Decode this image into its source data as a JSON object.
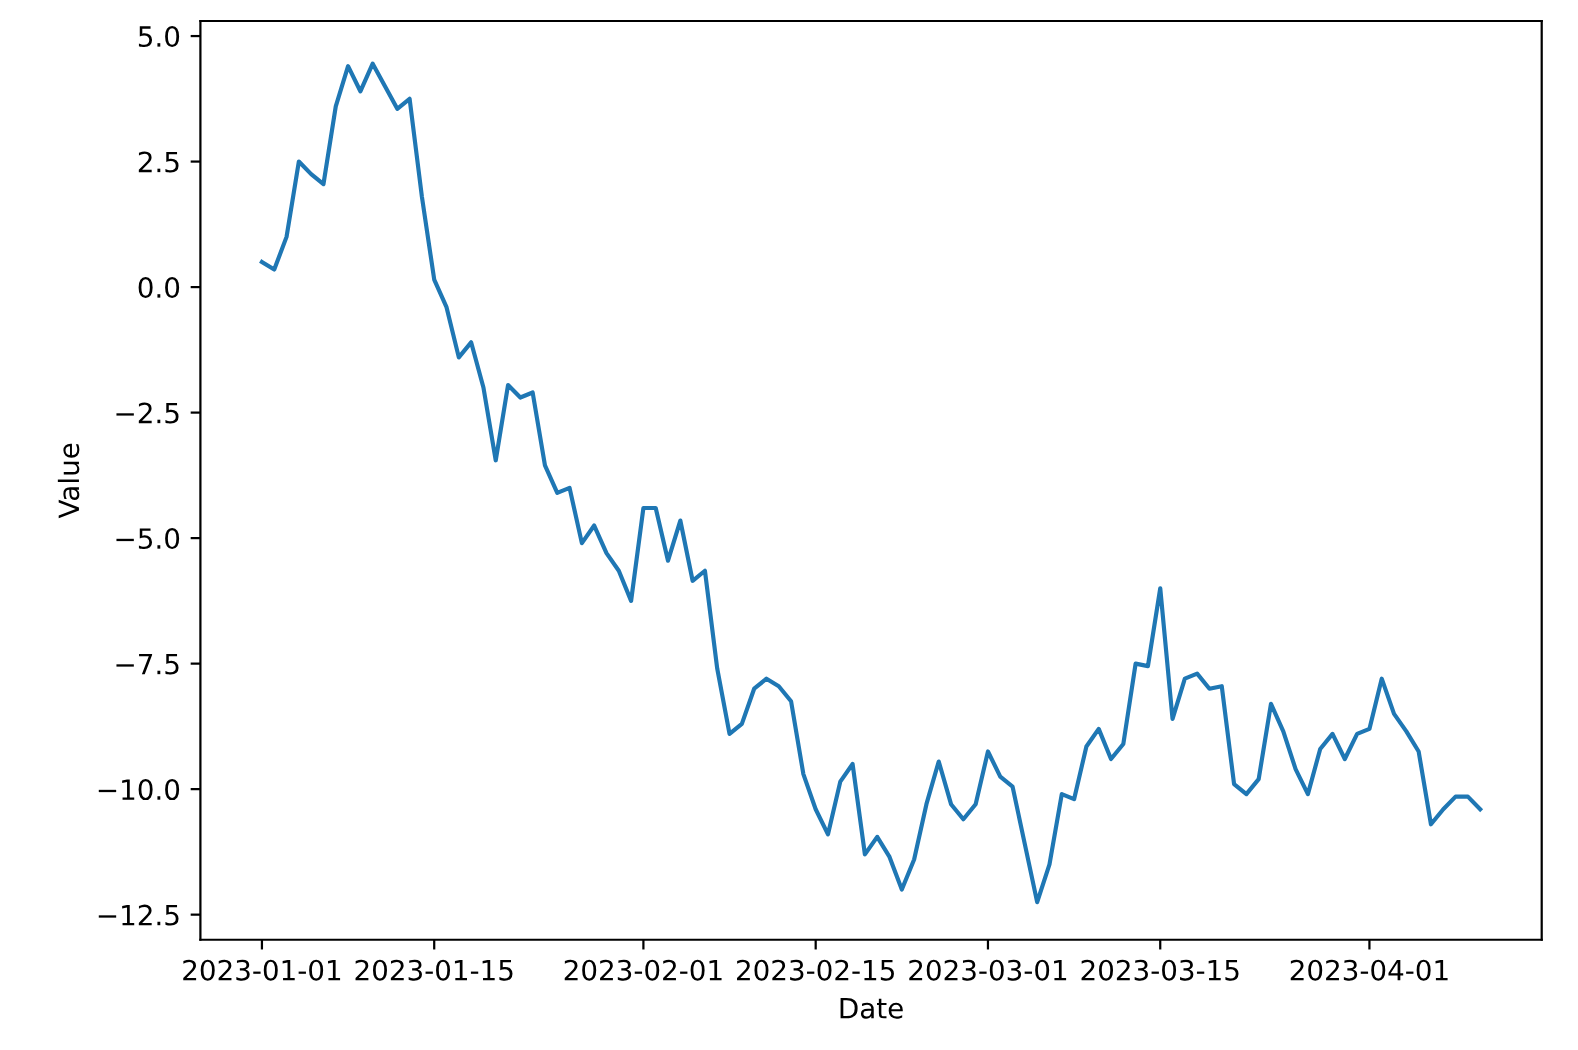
{
  "chart_data": {
    "type": "line",
    "xlabel": "Date",
    "ylabel": "Value",
    "x": [
      "2023-01-01",
      "2023-01-02",
      "2023-01-03",
      "2023-01-04",
      "2023-01-05",
      "2023-01-06",
      "2023-01-07",
      "2023-01-08",
      "2023-01-09",
      "2023-01-10",
      "2023-01-11",
      "2023-01-12",
      "2023-01-13",
      "2023-01-14",
      "2023-01-15",
      "2023-01-16",
      "2023-01-17",
      "2023-01-18",
      "2023-01-19",
      "2023-01-20",
      "2023-01-21",
      "2023-01-22",
      "2023-01-23",
      "2023-01-24",
      "2023-01-25",
      "2023-01-26",
      "2023-01-27",
      "2023-01-28",
      "2023-01-29",
      "2023-01-30",
      "2023-01-31",
      "2023-02-01",
      "2023-02-02",
      "2023-02-03",
      "2023-02-04",
      "2023-02-05",
      "2023-02-06",
      "2023-02-07",
      "2023-02-08",
      "2023-02-09",
      "2023-02-10",
      "2023-02-11",
      "2023-02-12",
      "2023-02-13",
      "2023-02-14",
      "2023-02-15",
      "2023-02-16",
      "2023-02-17",
      "2023-02-18",
      "2023-02-19",
      "2023-02-20",
      "2023-02-21",
      "2023-02-22",
      "2023-02-23",
      "2023-02-24",
      "2023-02-25",
      "2023-02-26",
      "2023-02-27",
      "2023-02-28",
      "2023-03-01",
      "2023-03-02",
      "2023-03-03",
      "2023-03-04",
      "2023-03-05",
      "2023-03-06",
      "2023-03-07",
      "2023-03-08",
      "2023-03-09",
      "2023-03-10",
      "2023-03-11",
      "2023-03-12",
      "2023-03-13",
      "2023-03-14",
      "2023-03-15",
      "2023-03-16",
      "2023-03-17",
      "2023-03-18",
      "2023-03-19",
      "2023-03-20",
      "2023-03-21",
      "2023-03-22",
      "2023-03-23",
      "2023-03-24",
      "2023-03-25",
      "2023-03-26",
      "2023-03-27",
      "2023-03-28",
      "2023-03-29",
      "2023-03-30",
      "2023-03-31",
      "2023-04-01",
      "2023-04-02",
      "2023-04-03",
      "2023-04-04",
      "2023-04-05",
      "2023-04-06",
      "2023-04-07",
      "2023-04-08",
      "2023-04-09",
      "2023-04-10"
    ],
    "series": [
      {
        "color": "#1f77b4",
        "values": [
          0.5,
          0.35,
          1.0,
          2.5,
          2.25,
          2.05,
          3.6,
          4.4,
          3.9,
          4.45,
          4.0,
          3.55,
          3.75,
          1.8,
          0.15,
          -0.4,
          -1.4,
          -1.1,
          -2.0,
          -3.45,
          -1.95,
          -2.2,
          -2.1,
          -3.55,
          -4.1,
          -4.0,
          -5.1,
          -4.75,
          -5.3,
          -5.65,
          -6.25,
          -4.4,
          -4.4,
          -5.45,
          -4.65,
          -5.85,
          -5.65,
          -7.6,
          -8.9,
          -8.7,
          -8.0,
          -7.8,
          -7.95,
          -8.25,
          -9.7,
          -10.4,
          -10.9,
          -9.85,
          -9.5,
          -11.3,
          -10.95,
          -11.35,
          -12.0,
          -11.4,
          -10.3,
          -9.45,
          -10.3,
          -10.6,
          -10.3,
          -9.25,
          -9.75,
          -9.95,
          -11.1,
          -12.25,
          -11.5,
          -10.1,
          -10.2,
          -9.15,
          -8.8,
          -9.4,
          -9.1,
          -7.5,
          -7.55,
          -6.0,
          -8.6,
          -7.8,
          -7.7,
          -8.0,
          -7.95,
          -9.9,
          -10.1,
          -9.8,
          -8.3,
          -8.85,
          -9.6,
          -10.1,
          -9.2,
          -8.9,
          -9.4,
          -8.9,
          -8.8,
          -7.8,
          -8.5,
          -8.85,
          -9.25,
          -10.7,
          -10.4,
          -10.15,
          -10.15,
          -10.4
        ]
      }
    ],
    "xlim": [
      "2022-12-27",
      "2023-04-15"
    ],
    "xticks": [
      "2023-01-01",
      "2023-01-15",
      "2023-02-01",
      "2023-02-15",
      "2023-03-01",
      "2023-03-15",
      "2023-04-01"
    ],
    "ylim": [
      -13.0,
      5.3
    ],
    "yticks": [
      {
        "value": -12.5,
        "label": "−12.5"
      },
      {
        "value": -10.0,
        "label": "−10.0"
      },
      {
        "value": -7.5,
        "label": "−7.5"
      },
      {
        "value": -5.0,
        "label": "−5.0"
      },
      {
        "value": -2.5,
        "label": "−2.5"
      },
      {
        "value": 0.0,
        "label": "0.0"
      },
      {
        "value": 2.5,
        "label": "2.5"
      },
      {
        "value": 5.0,
        "label": "5.0"
      }
    ],
    "grid": false,
    "marker": "none",
    "line_style": "solid"
  }
}
